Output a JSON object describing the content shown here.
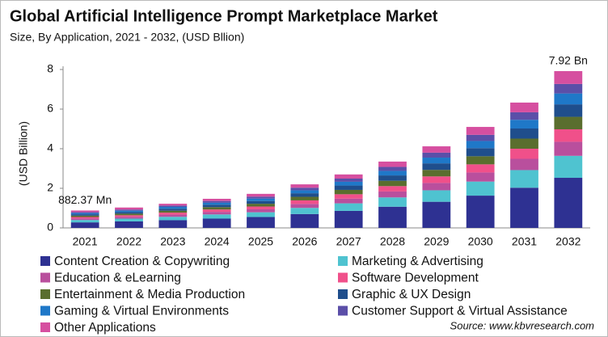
{
  "chart_data": {
    "type": "stacked_bar",
    "title": "Global Artificial Intelligence Prompt Marketplace Market",
    "subtitle": "Size, By Application, 2021 - 2032, (USD Bllion)",
    "y_label": "(USD Billion)",
    "source": "Source: www.kbvresearch.com",
    "categories": [
      "2021",
      "2022",
      "2023",
      "2024",
      "2025",
      "2026",
      "2027",
      "2028",
      "2029",
      "2030",
      "2031",
      "2032"
    ],
    "ylim": [
      0,
      8
    ],
    "yticks": [
      0,
      2,
      4,
      6,
      8
    ],
    "series": [
      {
        "name": "Content Creation & Copywriting",
        "color": "#2e3192",
        "values": [
          0.28,
          0.33,
          0.39,
          0.47,
          0.55,
          0.7,
          0.86,
          1.07,
          1.32,
          1.63,
          2.03,
          2.53
        ]
      },
      {
        "name": "Marketing & Advertising",
        "color": "#4fc3d0",
        "values": [
          0.12,
          0.14,
          0.17,
          0.21,
          0.24,
          0.31,
          0.38,
          0.47,
          0.58,
          0.71,
          0.89,
          1.11
        ]
      },
      {
        "name": "Education & eLearning",
        "color": "#b94f9d",
        "values": [
          0.08,
          0.09,
          0.11,
          0.13,
          0.15,
          0.2,
          0.24,
          0.3,
          0.37,
          0.46,
          0.57,
          0.71
        ]
      },
      {
        "name": "Software Development",
        "color": "#f0508a",
        "values": [
          0.07,
          0.08,
          0.1,
          0.12,
          0.14,
          0.18,
          0.22,
          0.27,
          0.33,
          0.41,
          0.51,
          0.63
        ]
      },
      {
        "name": "Entertainment & Media Production",
        "color": "#5a6e2e",
        "values": [
          0.07,
          0.08,
          0.1,
          0.12,
          0.14,
          0.18,
          0.22,
          0.27,
          0.33,
          0.41,
          0.51,
          0.63
        ]
      },
      {
        "name": "Graphic & UX Design",
        "color": "#1f4e8c",
        "values": [
          0.07,
          0.08,
          0.1,
          0.12,
          0.14,
          0.18,
          0.22,
          0.27,
          0.33,
          0.41,
          0.51,
          0.63
        ]
      },
      {
        "name": "Gaming & Virtual Environments",
        "color": "#1f78c8",
        "values": [
          0.06,
          0.07,
          0.09,
          0.1,
          0.12,
          0.15,
          0.19,
          0.23,
          0.29,
          0.36,
          0.44,
          0.55
        ]
      },
      {
        "name": "Customer Support & Virtual Assistance",
        "color": "#5b4fa8",
        "values": [
          0.05,
          0.06,
          0.07,
          0.09,
          0.1,
          0.13,
          0.16,
          0.2,
          0.25,
          0.31,
          0.38,
          0.48
        ]
      },
      {
        "name": "Other Applications",
        "color": "#d64fa0",
        "values": [
          0.08,
          0.1,
          0.09,
          0.11,
          0.14,
          0.17,
          0.21,
          0.27,
          0.32,
          0.4,
          0.49,
          0.65
        ]
      }
    ],
    "annotations": [
      {
        "text": "882.37 Mn",
        "x": "2021",
        "value": 0.88237
      },
      {
        "text": "7.92 Bn",
        "x": "2032",
        "value": 7.92
      }
    ]
  }
}
